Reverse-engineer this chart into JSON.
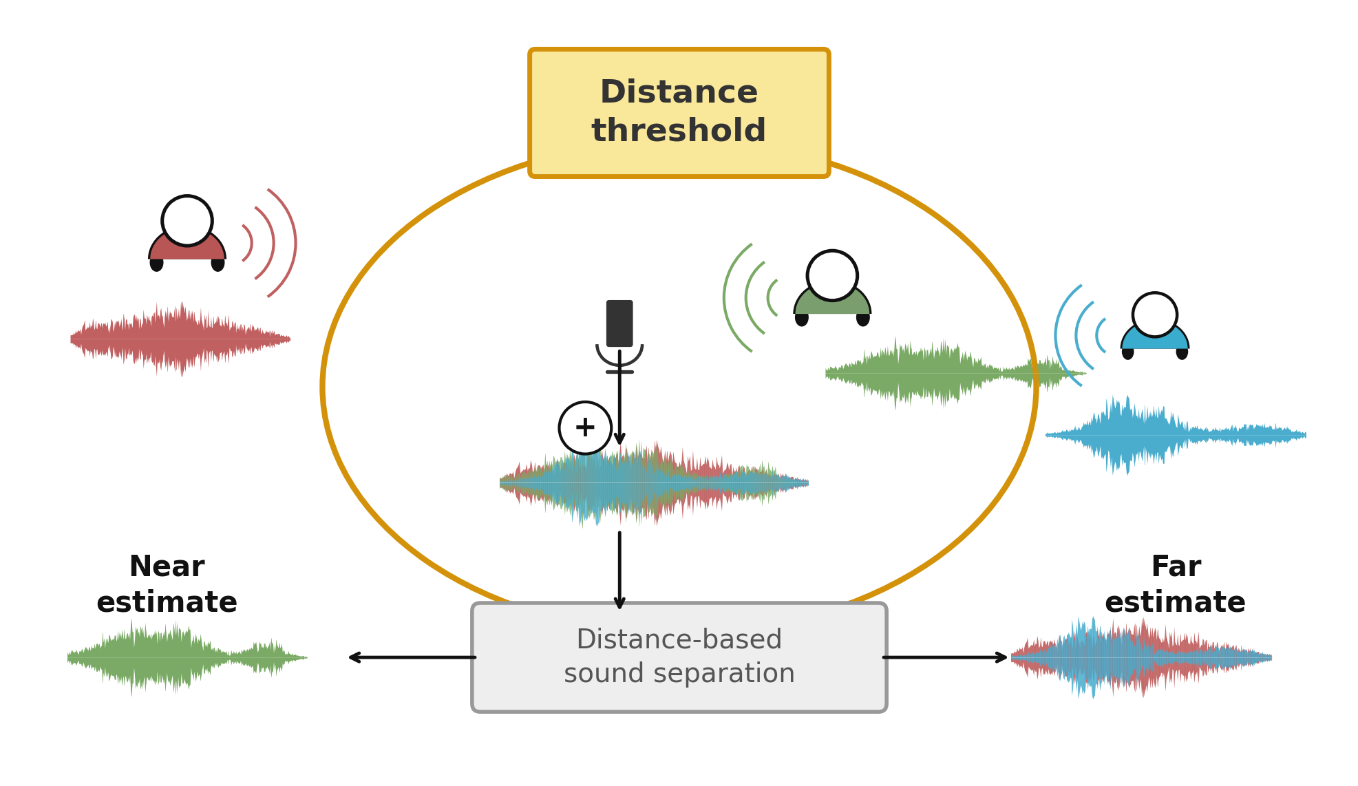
{
  "fig_width": 19.74,
  "fig_height": 11.42,
  "bg_color": "#ffffff",
  "colors": {
    "near": "#c06060",
    "far": "#4aadce",
    "green": "#7aaa65",
    "orange": "#d4920a",
    "box_fill": "#eeeeee",
    "box_edge": "#999999",
    "person_near": "#b85555",
    "person_green": "#7a9e6e",
    "person_far": "#3aadce",
    "threshold_fill": "#fae89a",
    "threshold_edge": "#d4920a",
    "black": "#111111",
    "mic_body": "#333333"
  },
  "distance_threshold_label": "Distance\nthreshold",
  "distance_box_label": "Distance-based\nsound separation",
  "near_label": "Near\nestimate",
  "far_label": "Far\nestimate"
}
